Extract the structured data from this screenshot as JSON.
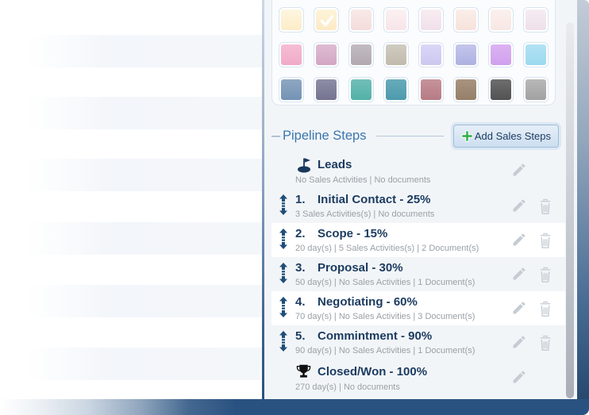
{
  "colors": {
    "panel_bg": "#f2f5f8",
    "highlight_row_bg": "#ffffff",
    "header_blue": "#3a76ae",
    "step_title_navy": "#1b3b5f",
    "subtitle_gray": "#9aa0a6",
    "reorder_arrow_navy": "#1f4e79",
    "action_icon_gray": "#c6ccd3",
    "add_plus_green": "#2fae46",
    "frame_navy": "#2a5280"
  },
  "color_palette": {
    "selected": {
      "row": 0,
      "col": 1,
      "icon": "checkmark-icon"
    },
    "rows": [
      [
        {
          "from": "#fdf6e0",
          "to": "#fdecc8"
        },
        {
          "from": "#fdf4da",
          "to": "#fdeac6"
        },
        {
          "from": "#f8eae8",
          "to": "#f3dcdc"
        },
        {
          "from": "#fbf1f2",
          "to": "#f6e4e8"
        },
        {
          "from": "#f7edf1",
          "to": "#f0e0e8"
        },
        {
          "from": "#faeee9",
          "to": "#f6e2da"
        },
        {
          "from": "#fbf0ee",
          "to": "#f8e7e4"
        },
        {
          "from": "#f5ecf2",
          "to": "#eee0ea"
        }
      ],
      [
        {
          "from": "#f5bed4",
          "to": "#f0a9c7"
        },
        {
          "from": "#dfbcd2",
          "to": "#d2a6c3"
        },
        {
          "from": "#c2bcc2",
          "to": "#b1a8b0"
        },
        {
          "from": "#d0ccc2",
          "to": "#c0baab"
        },
        {
          "from": "#d9d7f6",
          "to": "#cbc8f0"
        },
        {
          "from": "#c4c6ec",
          "to": "#adb1e0"
        },
        {
          "from": "#dcb3f2",
          "to": "#d0a0ed"
        },
        {
          "from": "#b2e2f4",
          "to": "#9cd9ef"
        }
      ],
      [
        {
          "from": "#8ea7c2",
          "to": "#7493b5"
        },
        {
          "from": "#8e8ea6",
          "to": "#747491"
        },
        {
          "from": "#72bfb7",
          "to": "#52b1a8"
        },
        {
          "from": "#68abba",
          "to": "#4c9aad"
        },
        {
          "from": "#c6939a",
          "to": "#b67b84"
        },
        {
          "from": "#a8937f",
          "to": "#957f69"
        },
        {
          "from": "#6e6e6e",
          "to": "#525252"
        },
        {
          "from": "#b8b8b8",
          "to": "#a2a2a2"
        }
      ]
    ]
  },
  "pipeline_section": {
    "collapse_glyph": "–",
    "title": "Pipeline Steps",
    "add_button": {
      "label": "Add Sales Steps",
      "icon": "plus-icon"
    }
  },
  "steps": [
    {
      "icon": "flag-base-icon",
      "number": "",
      "title": "Leads",
      "subtitle": "No Sales Activities | No documents",
      "reorderable": false,
      "deletable": false,
      "highlighted": false
    },
    {
      "icon": null,
      "number": "1.",
      "title": "Initial Contact - 25%",
      "subtitle": "3 Sales Activities(s) | No documents",
      "reorderable": true,
      "deletable": true,
      "highlighted": false
    },
    {
      "icon": null,
      "number": "2.",
      "title": "Scope - 15%",
      "subtitle": "20 day(s) | 5 Sales Activities(s) | 2 Document(s)",
      "reorderable": true,
      "deletable": true,
      "highlighted": true
    },
    {
      "icon": null,
      "number": "3.",
      "title": "Proposal - 30%",
      "subtitle": "50 day(s) | No Sales Activities | 1 Document(s)",
      "reorderable": true,
      "deletable": true,
      "highlighted": false
    },
    {
      "icon": null,
      "number": "4.",
      "title": "Negotiating - 60%",
      "subtitle": "70 day(s) | No Sales Activities | 3 Document(s)",
      "reorderable": true,
      "deletable": true,
      "highlighted": true
    },
    {
      "icon": null,
      "number": "5.",
      "title": "Commintment - 90%",
      "subtitle": "90 day(s) | No Sales Activities | 1 Document(s)",
      "reorderable": true,
      "deletable": true,
      "highlighted": false
    },
    {
      "icon": "trophy-icon",
      "number": "",
      "title": "Closed/Won - 100%",
      "subtitle": "270 day(s) | No documents",
      "reorderable": false,
      "deletable": false,
      "highlighted": false
    }
  ]
}
